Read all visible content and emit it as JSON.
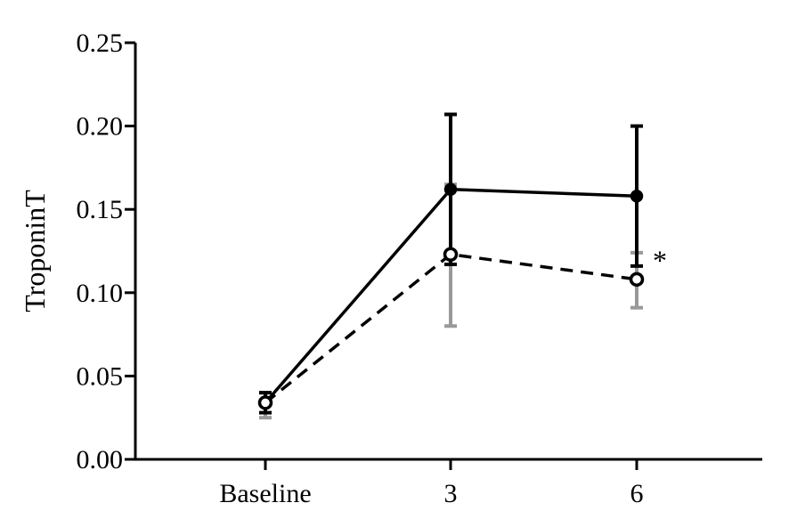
{
  "chart_data": {
    "type": "line",
    "title": "",
    "xlabel": "",
    "ylabel": "TroponinT",
    "ylim": [
      0,
      0.25
    ],
    "yticks": [
      "0.00",
      "0.05",
      "0.10",
      "0.15",
      "0.20",
      "0.25"
    ],
    "categories": [
      "Baseline",
      "3",
      "6"
    ],
    "series": [
      {
        "name": "solid-filled",
        "line": "solid",
        "marker": "filled-circle",
        "color": "#000000",
        "error_color": "#000000",
        "values": [
          0.034,
          0.162,
          0.158
        ],
        "error_upper": [
          0.04,
          0.207,
          0.2
        ],
        "error_lower": [
          0.028,
          0.117,
          0.116
        ]
      },
      {
        "name": "dashed-open",
        "line": "dashed",
        "marker": "open-circle",
        "color": "#000000",
        "error_color": "#999999",
        "values": [
          0.034,
          0.123,
          0.108
        ],
        "error_upper": [
          0.04,
          0.165,
          0.124
        ],
        "error_lower": [
          0.025,
          0.08,
          0.091
        ]
      }
    ],
    "annotations": [
      {
        "text": "*",
        "category": "6",
        "value": 0.122
      }
    ]
  }
}
